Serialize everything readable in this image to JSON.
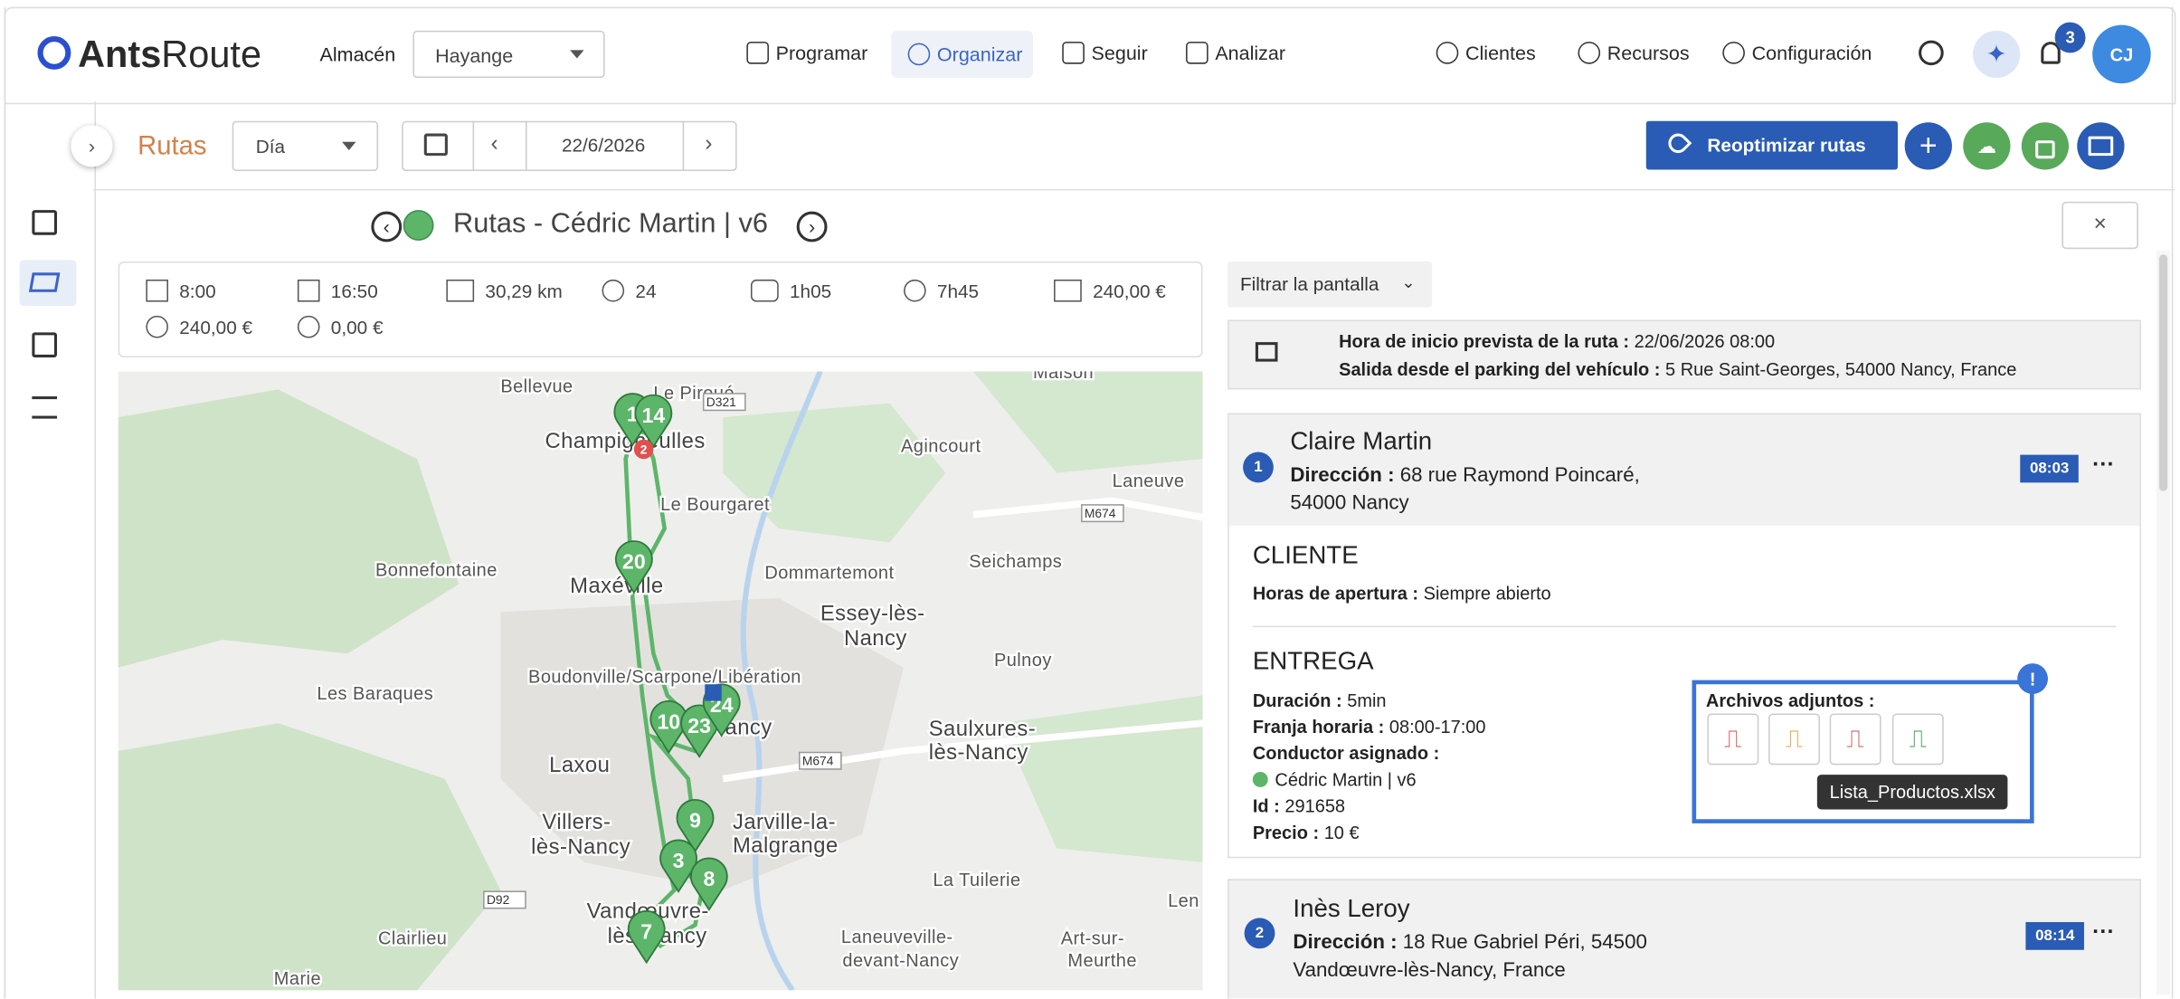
{
  "header": {
    "logo_bold": "Ants",
    "logo_light": "Route",
    "warehouse_label": "Almacén",
    "warehouse": "Hayange",
    "nav": [
      "Programar",
      "Organizar",
      "Seguir",
      "Analizar"
    ],
    "right_nav": [
      "Clientes",
      "Recursos",
      "Configuración"
    ],
    "notifications": "3",
    "avatar": "CJ"
  },
  "toolbar": {
    "title": "Rutas",
    "period": "Día",
    "date": "22/6/2026",
    "reoptimize": "Reoptimizar rutas"
  },
  "route": {
    "title": "Rutas - Cédric Martin | v6",
    "stats": [
      "8:00",
      "16:50",
      "30,29 km",
      "24",
      "1h05",
      "7h45",
      "240,00 €",
      "240,00 €",
      "0,00 €"
    ]
  },
  "map": {
    "labels": [
      "Bellevue",
      "Maison",
      "Le Piroué",
      "Champigneulles",
      "Agincourt",
      "Le Bourgaret",
      "Laneuve",
      "Bonnefontaine",
      "Maxéville",
      "Dommartemont",
      "Seichamps",
      "Essey-lès-",
      "Nancy",
      "Pulnoy",
      "Les Baraques",
      "Boudonville/Scarpone/Libération",
      "Nancy",
      "Laxou",
      "Saulxures-",
      "lès-Nancy",
      "Villers-",
      "lès-Nancy",
      "Jarville-la-",
      "Malgrange",
      "La Tuilerie",
      "Clairlieu",
      "Vandœuvre-",
      "lès-Nancy",
      "Laneuveville-",
      "devant-Nancy",
      "Art-sur-",
      "Meurthe",
      "Marie",
      "Len"
    ],
    "roads": [
      "D321",
      "M674",
      "M674",
      "D92"
    ],
    "markers": [
      "1",
      "14",
      "2",
      "20",
      "10",
      "23",
      "24",
      "9",
      "3",
      "8",
      "7"
    ]
  },
  "panel": {
    "filter": "Filtrar la pantalla",
    "start": {
      "label": "Hora de inicio prevista de la ruta :",
      "value": "22/06/2026 08:00",
      "label2": "Salida desde el parking del vehículo :",
      "value2": "5 Rue Saint-Georges, 54000 Nancy, France"
    },
    "stops": [
      {
        "number": "1",
        "name": "Claire Martin",
        "address_label": "Dirección :",
        "address": "68 rue Raymond Poincaré, 54000 Nancy",
        "time": "08:03"
      },
      {
        "number": "2",
        "name": "Inès Leroy",
        "address_label": "Dirección :",
        "address": "18 Rue Gabriel Péri, 54500 Vandœuvre-lès-Nancy, France",
        "time": "08:14"
      }
    ],
    "client": {
      "heading": "CLIENTE",
      "hours_label": "Horas de apertura :",
      "hours": "Siempre abierto"
    },
    "delivery": {
      "heading": "ENTREGA",
      "fields": [
        {
          "label": "Duración :",
          "value": "5min"
        },
        {
          "label": "Franja horaria :",
          "value": "08:00-17:00"
        },
        {
          "label": "Conductor asignado :",
          "value": ""
        }
      ],
      "driver": "Cédric Martin | v6",
      "id_label": "Id :",
      "id": "291658",
      "price_label": "Precio :",
      "price": "10 €"
    },
    "attachments": {
      "label": "Archivos adjuntos :",
      "badge": "!",
      "tooltip": "Lista_Productos.xlsx"
    }
  }
}
